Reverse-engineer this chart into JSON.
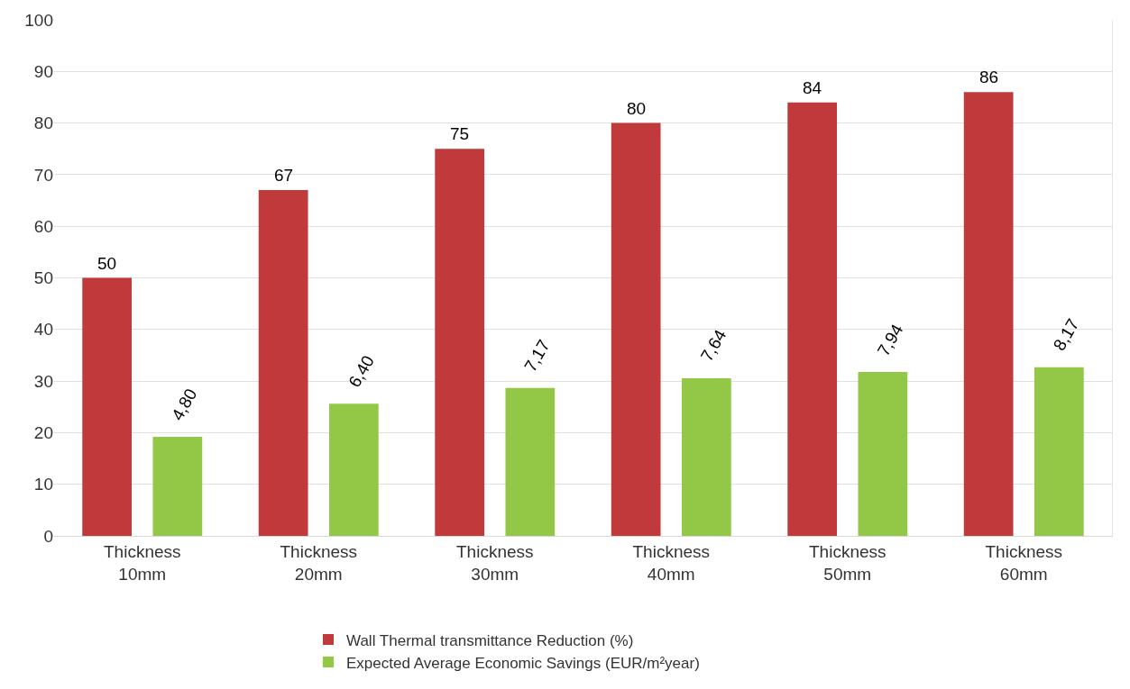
{
  "chart_data": {
    "type": "bar",
    "categories": [
      "Thickness\n10mm",
      "Thickness\n20mm",
      "Thickness\n30mm",
      "Thickness\n40mm",
      "Thickness\n50mm",
      "Thickness\n60mm"
    ],
    "series": [
      {
        "name": "Wall Thermal transmittance Reduction (%)",
        "color": "#c0393b",
        "values": [
          50,
          67,
          75,
          80,
          84,
          86
        ],
        "value_labels": [
          "50",
          "67",
          "75",
          "80",
          "84",
          "86"
        ]
      },
      {
        "name": "Expected Average Economic Savings (EUR/m²year)",
        "color": "#92c846",
        "axis": "y2",
        "values": [
          4.8,
          6.4,
          7.17,
          7.64,
          7.94,
          8.17
        ],
        "value_labels": [
          "4,80",
          "6,40",
          "7,17",
          "7,64",
          "7,94",
          "8,17"
        ]
      }
    ],
    "ylim": [
      0,
      100
    ],
    "yticks": [
      0,
      10,
      20,
      30,
      40,
      50,
      60,
      70,
      80,
      90,
      100
    ],
    "y2lim": [
      0,
      25
    ],
    "tick_labels": "xy",
    "grid": "y",
    "legend": "bottom"
  }
}
